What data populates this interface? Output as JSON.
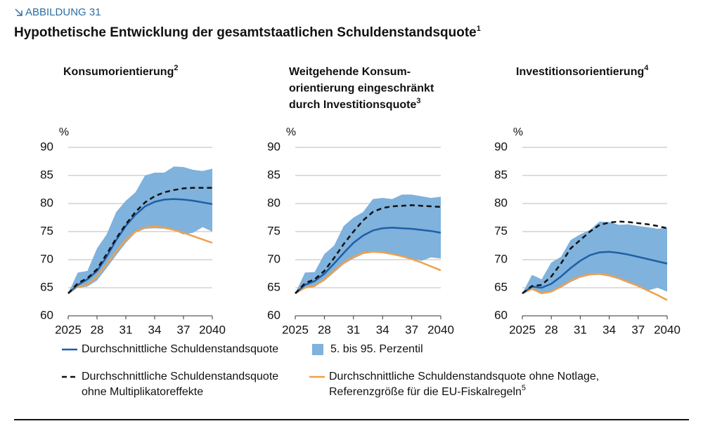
{
  "figure_label": "ABBILDUNG 31",
  "title": "Hypothetische Entwicklung der gesamtstaatlichen Schuldenstandsquote",
  "title_note": "1",
  "legend": [
    {
      "name_lines": [
        "Durchschnittliche Schuldenstandsquote"
      ],
      "color": "#1f5fa8",
      "style": "solid"
    },
    {
      "name_lines": [
        "5. bis 95. Perzentil"
      ],
      "color": "#7fb2dc",
      "style": "band"
    },
    {
      "name_lines": [
        "Durchschnittliche Schuldenstandsquote",
        "ohne Multiplikatoreffekte"
      ],
      "color": "#111111",
      "style": "dashed"
    },
    {
      "name_lines": [
        "Durchschnittliche Schuldenstandsquote ohne Notlage,",
        "Referenzgröße für die EU-Fiskalregeln"
      ],
      "note": "5",
      "color": "#f0a04b",
      "style": "solid"
    }
  ],
  "chart_data": [
    {
      "type": "line",
      "title_lines": [
        "Konsumorientierung"
      ],
      "title_note": "2",
      "ylabel": "%",
      "x": [
        2025,
        2026,
        2027,
        2028,
        2029,
        2030,
        2031,
        2032,
        2033,
        2034,
        2035,
        2036,
        2037,
        2038,
        2039,
        2040
      ],
      "xlim": [
        2025,
        2040
      ],
      "xticks": [
        2025,
        {
          "value": 2028,
          "label": "28"
        },
        {
          "value": 2031,
          "label": "31"
        },
        {
          "value": 2034,
          "label": "34"
        },
        {
          "value": 2037,
          "label": "37"
        },
        2040
      ],
      "ylim": [
        60,
        90
      ],
      "yticks": [
        60,
        65,
        70,
        75,
        80,
        85,
        90
      ],
      "grid": true,
      "series": [
        {
          "values": [
            64,
            65.5,
            66.5,
            68,
            70.5,
            73.5,
            76,
            78,
            79.5,
            80.3,
            80.7,
            80.8,
            80.7,
            80.5,
            80.2,
            79.9
          ]
        },
        {
          "lower": [
            64,
            65,
            65.2,
            66.3,
            68.5,
            70.8,
            73,
            74.8,
            75.5,
            75.6,
            75.5,
            75.2,
            74.5,
            74.8,
            75.8,
            75
          ],
          "upper": [
            64,
            67.7,
            68,
            72,
            74.5,
            78.5,
            80.5,
            82,
            85,
            85.5,
            85.5,
            86.6,
            86.5,
            86,
            85.8,
            86.2
          ]
        },
        {
          "values": [
            64,
            65.8,
            66.7,
            68.3,
            71,
            73.8,
            76.3,
            78.5,
            80.2,
            81.3,
            82,
            82.4,
            82.7,
            82.8,
            82.8,
            82.8
          ]
        },
        {
          "values": [
            64,
            65.2,
            65.5,
            67,
            69.2,
            71.5,
            73.5,
            75,
            75.7,
            75.9,
            75.7,
            75.3,
            74.8,
            74.2,
            73.6,
            73
          ]
        }
      ]
    },
    {
      "type": "line",
      "title_lines": [
        "Weitgehende Konsum-",
        "orientierung eingeschränkt",
        "durch Investitionsquote"
      ],
      "title_note": "3",
      "ylabel": "%",
      "x": [
        2025,
        2026,
        2027,
        2028,
        2029,
        2030,
        2031,
        2032,
        2033,
        2034,
        2035,
        2036,
        2037,
        2038,
        2039,
        2040
      ],
      "xlim": [
        2025,
        2040
      ],
      "xticks": [
        2025,
        {
          "value": 2028,
          "label": "28"
        },
        {
          "value": 2031,
          "label": "31"
        },
        {
          "value": 2034,
          "label": "34"
        },
        {
          "value": 2037,
          "label": "37"
        },
        2040
      ],
      "ylim": [
        60,
        90
      ],
      "yticks": [
        60,
        65,
        70,
        75,
        80,
        85,
        90
      ],
      "grid": true,
      "series": [
        {
          "values": [
            64,
            65.5,
            66.2,
            67.5,
            69.3,
            71.2,
            73,
            74.3,
            75.2,
            75.6,
            75.7,
            75.6,
            75.5,
            75.3,
            75.1,
            74.8
          ]
        },
        {
          "lower": [
            64,
            65,
            65.2,
            66.2,
            67.7,
            69.2,
            70.2,
            71,
            71.3,
            71.2,
            71,
            70.6,
            70.2,
            69.8,
            70.4,
            70.2
          ],
          "upper": [
            64,
            67.7,
            67.8,
            71,
            72.5,
            76,
            77.5,
            78.5,
            80.8,
            81,
            80.8,
            81.6,
            81.6,
            81.3,
            81,
            81.2
          ]
        },
        {
          "values": [
            64,
            65.8,
            66.5,
            68,
            70.3,
            72.8,
            75,
            77,
            78.5,
            79.2,
            79.5,
            79.6,
            79.7,
            79.6,
            79.5,
            79.4
          ]
        },
        {
          "values": [
            64,
            65,
            65.3,
            66.5,
            68,
            69.5,
            70.5,
            71.2,
            71.4,
            71.3,
            71,
            70.6,
            70.1,
            69.5,
            68.8,
            68.1
          ]
        }
      ]
    },
    {
      "type": "line",
      "title_lines": [
        "Investitionsorientierung"
      ],
      "title_note": "4",
      "ylabel": "%",
      "x": [
        2025,
        2026,
        2027,
        2028,
        2029,
        2030,
        2031,
        2032,
        2033,
        2034,
        2035,
        2036,
        2037,
        2038,
        2039,
        2040
      ],
      "xlim": [
        2025,
        2040
      ],
      "xticks": [
        2025,
        {
          "value": 2028,
          "label": "28"
        },
        {
          "value": 2031,
          "label": "31"
        },
        {
          "value": 2034,
          "label": "34"
        },
        {
          "value": 2037,
          "label": "37"
        },
        2040
      ],
      "ylim": [
        60,
        90
      ],
      "yticks": [
        60,
        65,
        70,
        75,
        80,
        85,
        90
      ],
      "grid": true,
      "series": [
        {
          "values": [
            64,
            65.2,
            65,
            65.7,
            67,
            68.5,
            69.8,
            70.8,
            71.3,
            71.4,
            71.2,
            70.9,
            70.5,
            70.1,
            69.7,
            69.3
          ]
        },
        {
          "lower": [
            64,
            64.6,
            64,
            64.2,
            65,
            66,
            66.8,
            67.2,
            67.3,
            67,
            66.5,
            65.8,
            65.2,
            64.5,
            65,
            64.3
          ],
          "upper": [
            64,
            67.3,
            66.5,
            69.5,
            70.5,
            73.5,
            74.5,
            75.3,
            76.8,
            76.7,
            76.2,
            76.3,
            76,
            75.8,
            75.5,
            75.7
          ]
        },
        {
          "values": [
            64,
            65.3,
            65.5,
            67,
            69.3,
            72,
            73.5,
            75,
            76.2,
            76.6,
            76.8,
            76.7,
            76.5,
            76.3,
            76,
            75.6
          ]
        },
        {
          "values": [
            64,
            64.8,
            64,
            64.3,
            65.2,
            66.3,
            67,
            67.4,
            67.5,
            67.2,
            66.7,
            66,
            65.3,
            64.5,
            63.7,
            62.8
          ]
        }
      ]
    }
  ]
}
